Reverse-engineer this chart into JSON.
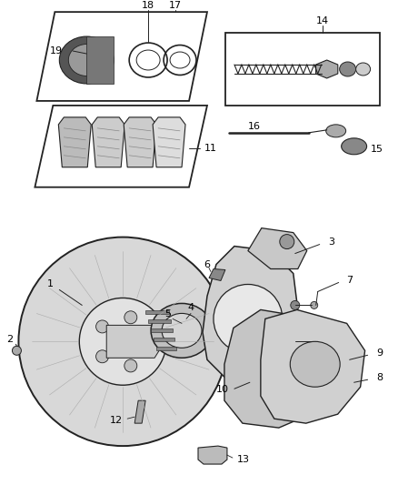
{
  "bg_color": "#ffffff",
  "line_color": "#222222",
  "fig_width": 4.38,
  "fig_height": 5.33,
  "dpi": 100
}
